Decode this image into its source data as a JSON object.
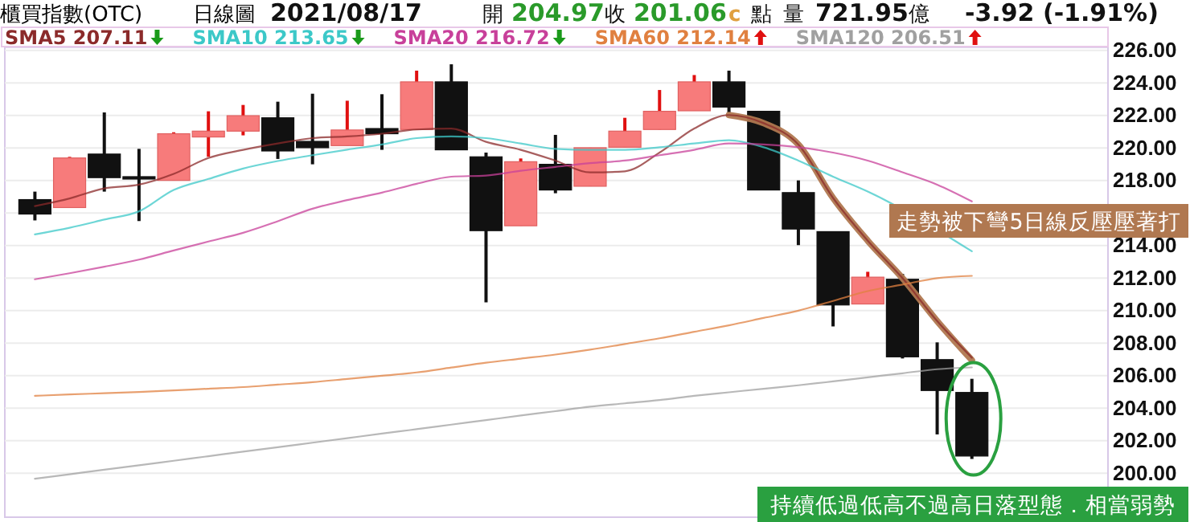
{
  "chart_data": {
    "type": "candlestick",
    "title": "櫃買指數(OTC)",
    "subtitle": "日線圖",
    "annotations": [
      "2021/08/17",
      "開",
      "204.97",
      "收",
      "201.06",
      "c",
      "點",
      "量",
      "721.95",
      "億",
      "-3.92 (-1.91%)",
      {
        "text": "走勢被下彎5日線反壓壓著打"
      },
      {
        "text": "持續低過低高不過高日落型態．相當弱勢"
      }
    ],
    "categories": [
      null,
      null,
      null,
      null,
      null,
      null,
      null,
      null,
      null,
      null,
      null,
      null,
      null,
      null,
      null,
      null,
      null,
      null,
      null,
      null,
      null,
      null,
      null,
      null,
      null,
      null,
      null,
      null
    ],
    "ohlc": [
      [
        216.83,
        217.32,
        215.55,
        215.94
      ],
      [
        216.34,
        219.46,
        216.34,
        219.39
      ],
      [
        219.63,
        222.19,
        217.32,
        218.18
      ],
      [
        218.24,
        219.95,
        215.51,
        218.11
      ],
      [
        218.01,
        220.97,
        218.01,
        220.88
      ],
      [
        220.68,
        222.26,
        219.46,
        221.04
      ],
      [
        221.04,
        222.65,
        220.78,
        221.99
      ],
      [
        221.86,
        222.85,
        219.33,
        219.82
      ],
      [
        220.41,
        223.34,
        219.0,
        220.02
      ],
      [
        220.15,
        222.91,
        220.15,
        221.11
      ],
      [
        221.2,
        223.31,
        219.89,
        220.88
      ],
      [
        221.14,
        224.76,
        221.14,
        224.07
      ],
      [
        224.07,
        225.15,
        219.89,
        219.89
      ],
      [
        219.46,
        219.72,
        210.51,
        214.92
      ],
      [
        215.22,
        219.36,
        215.22,
        219.16
      ],
      [
        219.0,
        220.81,
        217.22,
        217.42
      ],
      [
        217.65,
        220.02,
        217.65,
        220.02
      ],
      [
        220.05,
        221.86,
        220.05,
        221.04
      ],
      [
        221.14,
        223.57,
        221.14,
        222.26
      ],
      [
        222.29,
        224.49,
        222.29,
        224.07
      ],
      [
        224.07,
        224.76,
        222.19,
        222.52
      ],
      [
        222.26,
        222.26,
        217.42,
        217.42
      ],
      [
        217.26,
        218.01,
        214.03,
        215.02
      ],
      [
        214.86,
        214.86,
        209.03,
        210.35
      ],
      [
        210.41,
        212.39,
        210.41,
        212.06
      ],
      [
        211.93,
        212.26,
        207.06,
        207.16
      ],
      [
        206.99,
        208.05,
        202.39,
        205.09
      ],
      [
        204.97,
        205.81,
        200.88,
        201.06
      ]
    ],
    "colors": [
      "#111111",
      "#f77b7b",
      "#111111",
      "#111111",
      "#f77b7b",
      "#f77b7b",
      "#f77b7b",
      "#111111",
      "#111111",
      "#f77b7b",
      "#111111",
      "#f77b7b",
      "#111111",
      "#111111",
      "#f77b7b",
      "#111111",
      "#f77b7b",
      "#f77b7b",
      "#f77b7b",
      "#f77b7b",
      "#111111",
      "#111111",
      "#111111",
      "#111111",
      "#f77b7b",
      "#111111",
      "#111111",
      "#111111"
    ],
    "series": [
      {
        "type": "line",
        "color": "#b07850",
        "values": [
          null,
          null,
          null,
          null,
          null,
          null,
          null,
          null,
          null,
          null,
          null,
          null,
          null,
          null,
          null,
          null,
          null,
          null,
          null,
          null,
          222.03,
          221.53,
          220.22,
          216.93,
          214.3,
          212.0,
          209.36,
          206.96
        ]
      },
      {
        "type": "line",
        "name": "SMA5 207.11",
        "color": "#8b2a2a",
        "values": [
          216.43,
          216.9,
          217.52,
          217.75,
          218.41,
          219.39,
          219.89,
          220.28,
          220.61,
          220.71,
          220.88,
          221.14,
          221.2,
          220.38,
          219.89,
          219.23,
          218.5,
          218.57,
          219.72,
          221.2,
          222.03,
          221.53,
          220.22,
          216.93,
          214.3,
          212.0,
          209.36,
          207.11
        ]
      },
      {
        "type": "line",
        "name": "SMA10 213.65",
        "color": "#3cc8c8",
        "values": [
          214.69,
          215.1,
          215.6,
          216.11,
          217.42,
          218.1,
          218.74,
          219.2,
          219.56,
          219.9,
          220.22,
          220.61,
          220.71,
          220.61,
          220.28,
          219.95,
          219.89,
          219.89,
          220.05,
          220.28,
          220.48,
          220.05,
          219.23,
          218.24,
          217.32,
          null,
          null,
          213.65
        ]
      },
      {
        "type": "line",
        "name": "SMA20 216.72",
        "color": "#c8409a",
        "values": [
          211.93,
          212.3,
          212.7,
          213.14,
          213.7,
          214.25,
          214.79,
          215.5,
          216.27,
          216.8,
          217.26,
          217.8,
          218.24,
          218.31,
          218.6,
          218.84,
          219.07,
          219.23,
          219.56,
          219.89,
          220.28,
          220.22,
          220.05,
          219.72,
          219.23,
          218.51,
          217.75,
          216.72
        ]
      },
      {
        "type": "line",
        "name": "SMA60 212.14",
        "color": "#e08040",
        "values": [
          204.76,
          204.85,
          204.92,
          205.0,
          205.1,
          205.2,
          205.3,
          205.45,
          205.6,
          205.8,
          206.0,
          206.2,
          206.5,
          206.8,
          207.05,
          207.3,
          207.6,
          207.95,
          208.3,
          208.7,
          209.1,
          209.55,
          210.0,
          210.6,
          211.2,
          211.6,
          212.0,
          212.14
        ]
      },
      {
        "type": "line",
        "name": "SMA120 206.51",
        "color": "#a0a0a0",
        "values": [
          199.66,
          199.94,
          200.22,
          200.49,
          200.77,
          201.05,
          201.33,
          201.6,
          201.88,
          202.16,
          202.44,
          202.71,
          202.99,
          203.27,
          203.55,
          203.82,
          204.1,
          204.3,
          204.5,
          204.76,
          204.98,
          205.2,
          205.41,
          205.65,
          205.9,
          206.15,
          206.4,
          206.51
        ]
      }
    ],
    "ylim": [
      197.3,
      226.2
    ],
    "yticks": [
      {
        "value": 200,
        "label": "200.00"
      },
      {
        "value": 202,
        "label": "202.00"
      },
      {
        "value": 204,
        "label": "204.00"
      },
      {
        "value": 206,
        "label": "206.00"
      },
      {
        "value": 208,
        "label": "208.00"
      },
      {
        "value": 210,
        "label": "210.00"
      },
      {
        "value": 212,
        "label": "212.00"
      },
      {
        "value": 214,
        "label": "214.00"
      },
      {
        "value": 216,
        "label": null
      },
      {
        "value": 218,
        "label": "218.00"
      },
      {
        "value": 220,
        "label": "220.00"
      },
      {
        "value": 222,
        "label": "222.00"
      },
      {
        "value": 224,
        "label": "224.00"
      },
      {
        "value": 226,
        "label": "226.00"
      }
    ],
    "grid": "y",
    "legend": "top"
  }
}
